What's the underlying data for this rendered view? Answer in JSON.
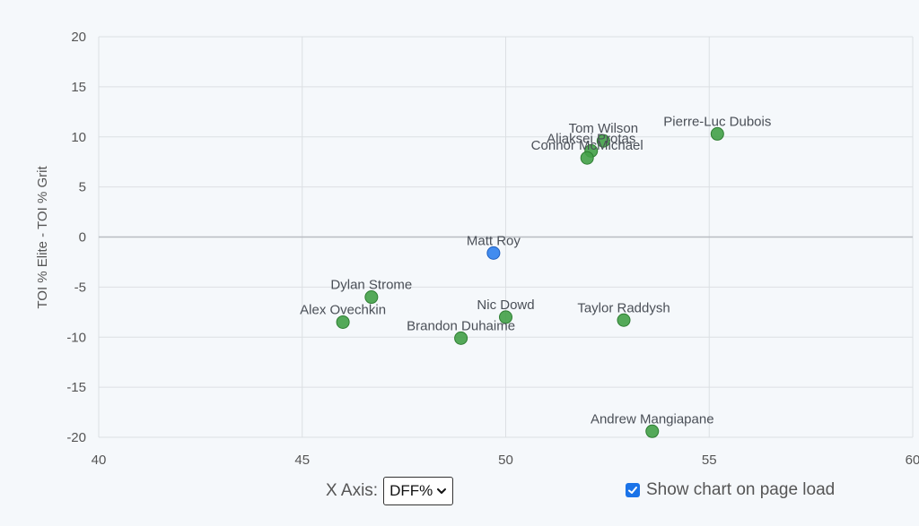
{
  "chart_data": {
    "type": "scatter",
    "xlim": [
      40,
      60
    ],
    "ylim": [
      -20,
      20
    ],
    "x_ticks": [
      40,
      45,
      50,
      55,
      60
    ],
    "y_ticks": [
      20,
      15,
      10,
      5,
      0,
      -5,
      -10,
      -15,
      -20
    ],
    "ylabel": "TOI % Elite - TOI % Grit",
    "grid": true,
    "points": [
      {
        "label": "Pierre-Luc Dubois",
        "x": 55.2,
        "y": 10.3,
        "color": "#43a047"
      },
      {
        "label": "Tom Wilson",
        "x": 52.4,
        "y": 9.6,
        "color": "#43a047"
      },
      {
        "label": "Aliaksei Protas",
        "x": 52.1,
        "y": 8.6,
        "color": "#43a047"
      },
      {
        "label": "Connor McMichael",
        "x": 52.0,
        "y": 7.9,
        "color": "#43a047"
      },
      {
        "label": "Matt Roy",
        "x": 49.7,
        "y": -1.6,
        "color": "#2f80ed"
      },
      {
        "label": "Dylan Strome",
        "x": 46.7,
        "y": -6.0,
        "color": "#43a047"
      },
      {
        "label": "Alex Ovechkin",
        "x": 46.0,
        "y": -8.5,
        "color": "#43a047"
      },
      {
        "label": "Nic Dowd",
        "x": 50.0,
        "y": -8.0,
        "color": "#43a047"
      },
      {
        "label": "Brandon Duhaime",
        "x": 48.9,
        "y": -10.1,
        "color": "#43a047"
      },
      {
        "label": "Taylor Raddysh",
        "x": 52.9,
        "y": -8.3,
        "color": "#43a047"
      },
      {
        "label": "Andrew Mangiapane",
        "x": 53.6,
        "y": -19.4,
        "color": "#43a047"
      }
    ]
  },
  "controls": {
    "x_axis_label": "X Axis:",
    "x_axis_value": "DFF%",
    "show_chart_label": "Show chart on page load",
    "show_chart_checked": true
  },
  "colors": {
    "accent": "#1a73e8",
    "grid": "#dcdfe3",
    "zero_line": "#b8bcc2"
  },
  "icons": {
    "select": "chevron-down-icon",
    "checkbox": "checkmark-icon"
  }
}
